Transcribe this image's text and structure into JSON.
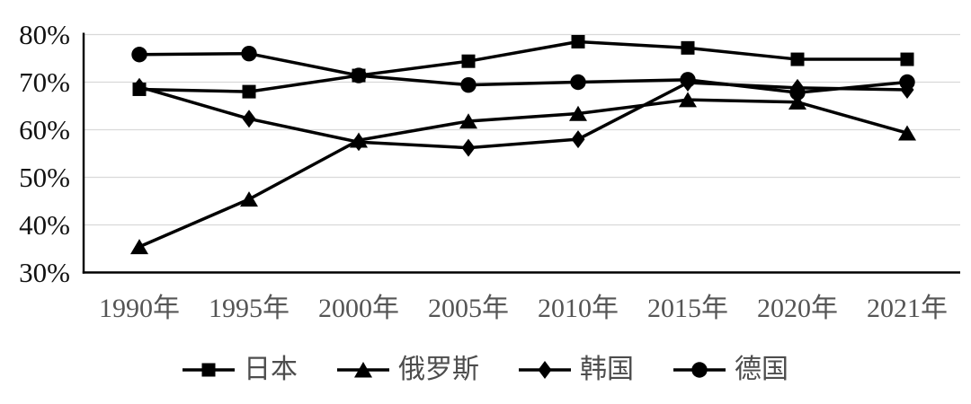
{
  "chart_data": {
    "type": "line",
    "title": "",
    "xlabel": "",
    "ylabel": "",
    "categories": [
      "1990年",
      "1995年",
      "2000年",
      "2005年",
      "2010年",
      "2015年",
      "2020年",
      "2021年"
    ],
    "y_ticks": [
      "80%",
      "70%",
      "60%",
      "50%",
      "40%",
      "30%"
    ],
    "y_tick_values": [
      80,
      70,
      60,
      50,
      40,
      30
    ],
    "ylim": [
      30,
      80
    ],
    "grid": "horizontal-only",
    "legend_position": "bottom",
    "series": [
      {
        "name": "日本",
        "marker": "square",
        "values": [
          68.5,
          68.0,
          71.4,
          74.4,
          78.5,
          77.2,
          74.8,
          74.8
        ]
      },
      {
        "name": "俄罗斯",
        "marker": "triangle",
        "values": [
          35.4,
          45.4,
          57.8,
          61.8,
          63.4,
          66.3,
          65.8,
          59.3
        ]
      },
      {
        "name": "韩国",
        "marker": "diamond",
        "values": [
          69.0,
          62.3,
          57.4,
          56.2,
          58.0,
          69.9,
          68.8,
          68.4
        ]
      },
      {
        "name": "德国",
        "marker": "circle",
        "values": [
          75.8,
          76.0,
          71.4,
          69.4,
          70.0,
          70.5,
          67.8,
          70.0
        ]
      }
    ],
    "colors": {
      "series_line": "#000000",
      "marker_fill": "#000000",
      "gridline": "#d9d9d9",
      "axis_line": "#000000",
      "y_tick_label": "#111111",
      "x_tick_label": "#555555",
      "legend_label": "#4d4d4d",
      "background": "#ffffff"
    }
  }
}
